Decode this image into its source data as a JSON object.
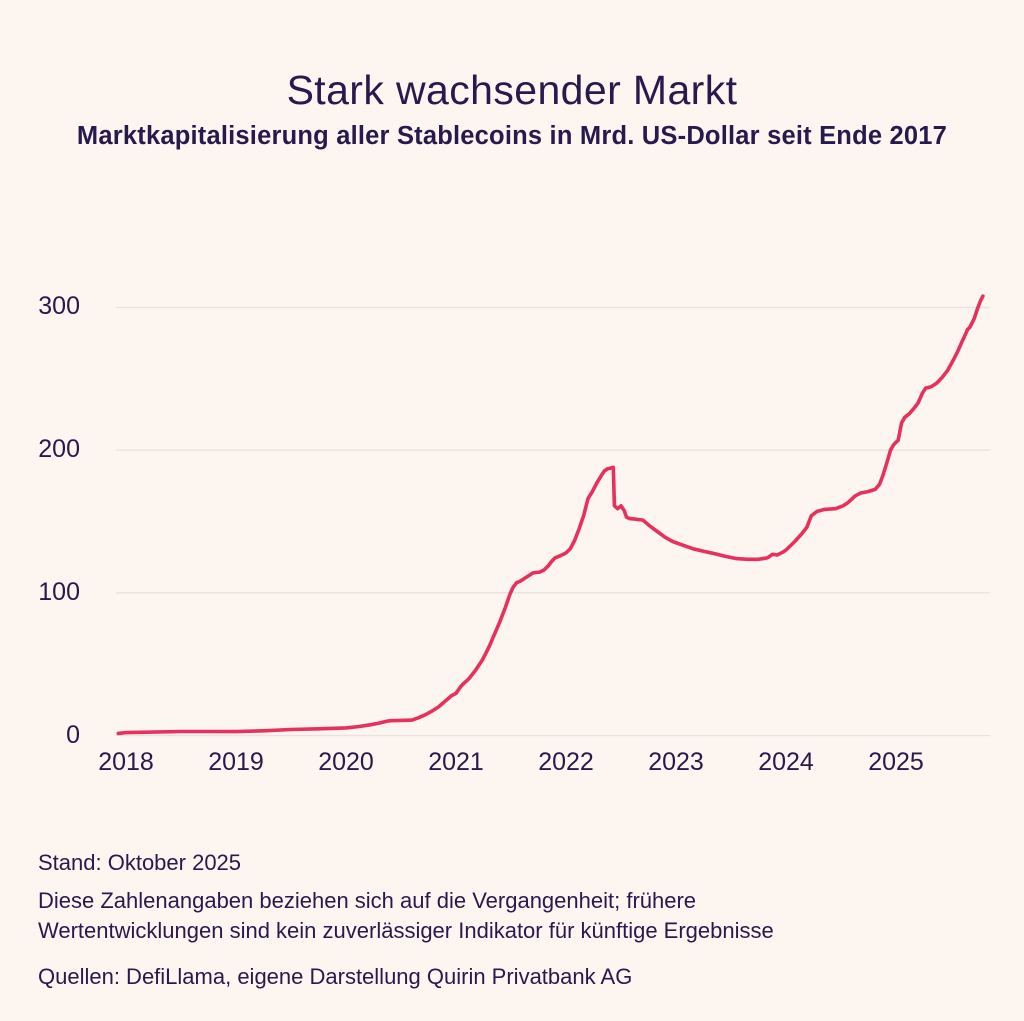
{
  "header": {
    "title": "Stark wachsender Markt",
    "subtitle": "Marktkapitalisierung aller Stablecoins in Mrd. US-Dollar seit Ende 2017"
  },
  "chart_data": {
    "type": "line",
    "title": "Stark wachsender Markt",
    "subtitle": "Marktkapitalisierung aller Stablecoins in Mrd. US-Dollar seit Ende 2017",
    "xlabel": "",
    "ylabel": "Mrd. US-Dollar",
    "x_ticks": [
      2018,
      2019,
      2020,
      2021,
      2022,
      2023,
      2024,
      2025
    ],
    "y_ticks": [
      0,
      100,
      200,
      300
    ],
    "xlim": [
      2017.9,
      2025.95
    ],
    "ylim": [
      0,
      320
    ],
    "grid": "horizontal",
    "legend": "none",
    "series": [
      {
        "name": "Marktkapitalisierung aller Stablecoins",
        "unit": "Mrd. US-Dollar",
        "points": [
          [
            2017.93,
            1.5
          ],
          [
            2018.0,
            2.0
          ],
          [
            2018.25,
            2.4
          ],
          [
            2018.5,
            2.8
          ],
          [
            2018.75,
            2.8
          ],
          [
            2019.0,
            2.7
          ],
          [
            2019.25,
            3.3
          ],
          [
            2019.5,
            4.2
          ],
          [
            2019.75,
            4.7
          ],
          [
            2020.0,
            5.3
          ],
          [
            2020.12,
            6.3
          ],
          [
            2020.22,
            7.5
          ],
          [
            2020.3,
            8.7
          ],
          [
            2020.36,
            9.8
          ],
          [
            2020.4,
            10.4
          ],
          [
            2020.5,
            10.6
          ],
          [
            2020.6,
            10.8
          ],
          [
            2020.66,
            12.5
          ],
          [
            2020.72,
            14.5
          ],
          [
            2020.78,
            17
          ],
          [
            2020.84,
            20
          ],
          [
            2020.9,
            24
          ],
          [
            2020.96,
            28
          ],
          [
            2021.0,
            29.5
          ],
          [
            2021.04,
            34
          ],
          [
            2021.07,
            36.5
          ],
          [
            2021.12,
            40
          ],
          [
            2021.18,
            46
          ],
          [
            2021.24,
            53
          ],
          [
            2021.3,
            62
          ],
          [
            2021.35,
            71
          ],
          [
            2021.4,
            80
          ],
          [
            2021.45,
            90
          ],
          [
            2021.49,
            99
          ],
          [
            2021.52,
            104
          ],
          [
            2021.55,
            107
          ],
          [
            2021.58,
            108
          ],
          [
            2021.62,
            110
          ],
          [
            2021.66,
            112
          ],
          [
            2021.7,
            114
          ],
          [
            2021.76,
            114.5
          ],
          [
            2021.8,
            116
          ],
          [
            2021.84,
            119
          ],
          [
            2021.87,
            122
          ],
          [
            2021.9,
            124.5
          ],
          [
            2021.95,
            126
          ],
          [
            2022.0,
            128
          ],
          [
            2022.04,
            131
          ],
          [
            2022.08,
            137
          ],
          [
            2022.12,
            145
          ],
          [
            2022.16,
            154
          ],
          [
            2022.2,
            166
          ],
          [
            2022.24,
            171
          ],
          [
            2022.28,
            177
          ],
          [
            2022.32,
            182
          ],
          [
            2022.35,
            185.5
          ],
          [
            2022.38,
            187
          ],
          [
            2022.41,
            187.5
          ],
          [
            2022.43,
            188
          ],
          [
            2022.44,
            161
          ],
          [
            2022.47,
            159
          ],
          [
            2022.5,
            161
          ],
          [
            2022.53,
            157.5
          ],
          [
            2022.55,
            153
          ],
          [
            2022.58,
            152
          ],
          [
            2022.65,
            151.5
          ],
          [
            2022.7,
            151
          ],
          [
            2022.76,
            147
          ],
          [
            2022.83,
            143
          ],
          [
            2022.9,
            139
          ],
          [
            2022.97,
            136
          ],
          [
            2023.04,
            134
          ],
          [
            2023.15,
            131
          ],
          [
            2023.26,
            129
          ],
          [
            2023.35,
            127.5
          ],
          [
            2023.45,
            125.5
          ],
          [
            2023.55,
            124
          ],
          [
            2023.65,
            123.5
          ],
          [
            2023.75,
            123.5
          ],
          [
            2023.83,
            124.5
          ],
          [
            2023.88,
            127
          ],
          [
            2023.92,
            126.5
          ],
          [
            2023.97,
            128.5
          ],
          [
            2024.0,
            130
          ],
          [
            2024.08,
            136
          ],
          [
            2024.15,
            142
          ],
          [
            2024.19,
            146
          ],
          [
            2024.21,
            150
          ],
          [
            2024.23,
            154
          ],
          [
            2024.28,
            157
          ],
          [
            2024.35,
            158.5
          ],
          [
            2024.45,
            159
          ],
          [
            2024.52,
            161
          ],
          [
            2024.56,
            163
          ],
          [
            2024.63,
            168
          ],
          [
            2024.68,
            170
          ],
          [
            2024.75,
            171
          ],
          [
            2024.81,
            172.5
          ],
          [
            2024.85,
            176
          ],
          [
            2024.88,
            182
          ],
          [
            2024.92,
            192
          ],
          [
            2024.95,
            200
          ],
          [
            2024.98,
            204
          ],
          [
            2025.0,
            205.5
          ],
          [
            2025.02,
            207
          ],
          [
            2025.05,
            219
          ],
          [
            2025.08,
            223
          ],
          [
            2025.12,
            225.5
          ],
          [
            2025.16,
            229
          ],
          [
            2025.2,
            233
          ],
          [
            2025.24,
            240
          ],
          [
            2025.27,
            243.5
          ],
          [
            2025.32,
            244.5
          ],
          [
            2025.37,
            247
          ],
          [
            2025.42,
            251
          ],
          [
            2025.47,
            256
          ],
          [
            2025.52,
            263
          ],
          [
            2025.56,
            269
          ],
          [
            2025.6,
            276
          ],
          [
            2025.63,
            281
          ],
          [
            2025.65,
            284.5
          ],
          [
            2025.67,
            286
          ],
          [
            2025.71,
            292
          ],
          [
            2025.74,
            299
          ],
          [
            2025.77,
            305
          ],
          [
            2025.79,
            308
          ]
        ]
      }
    ]
  },
  "footer": {
    "stand": "Stand: Oktober 2025",
    "disclaimer_lines": [
      "Diese Zahlenangaben beziehen sich auf die Vergangenheit; frühere",
      "Wertentwicklungen sind kein zuverlässiger Indikator für künftige Ergebnisse"
    ],
    "sources": "Quellen: DefiLlama, eigene Darstellung Quirin Privatbank AG"
  },
  "colors": {
    "background": "#fcf5f0",
    "text": "#281a4d",
    "line": "#e7305b",
    "grid": "#e9e2de"
  }
}
